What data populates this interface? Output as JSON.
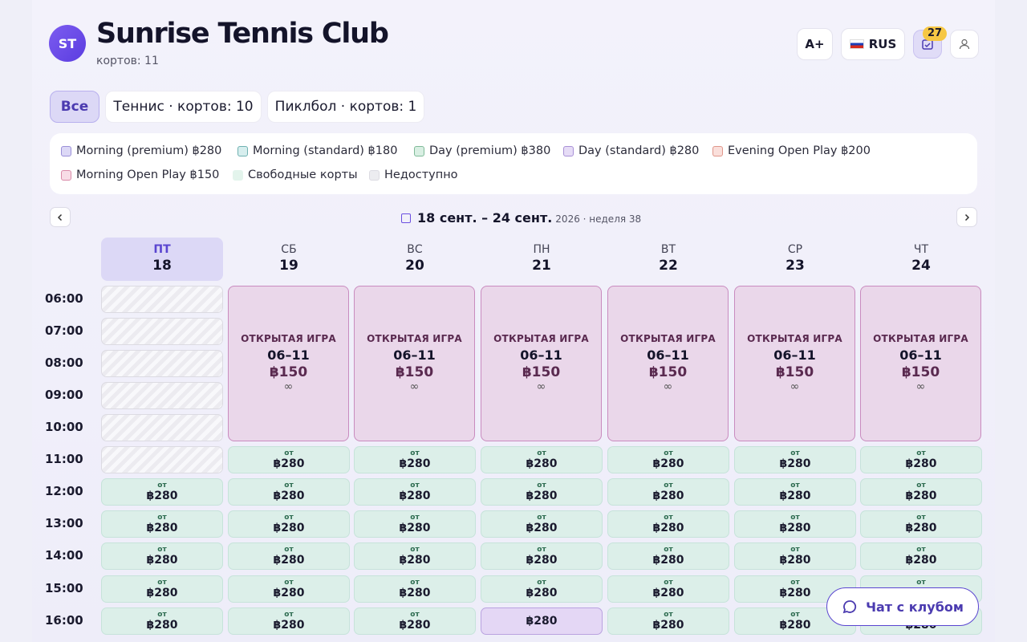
{
  "header": {
    "avatar_initials": "ST",
    "title": "Sunrise Tennis Club",
    "subtitle": "кортов: 11",
    "font_button": "A+",
    "lang_button": "RUS",
    "badge_count": "27"
  },
  "tabs": [
    {
      "label": "Все"
    },
    {
      "label": "Теннис · кортов: 10"
    },
    {
      "label": "Пиклбол · кортов: 1"
    }
  ],
  "legend": [
    {
      "label": "Morning (premium) ฿280",
      "color": "#dcd8f6",
      "border": "#9a8fd8"
    },
    {
      "label": "Morning (standard) ฿180",
      "color": "#d7eeee",
      "border": "#6fb1b1"
    },
    {
      "label": "Day (premium) ฿380",
      "color": "#d9efe3",
      "border": "#7fba98"
    },
    {
      "label": "Day (standard) ฿280",
      "color": "#e6dcf6",
      "border": "#a890d6"
    },
    {
      "label": "Evening Open Play ฿200",
      "color": "#fadfdb",
      "border": "#e0968a"
    },
    {
      "label": "Morning Open Play ฿150",
      "color": "#f8dce6",
      "border": "#d98aa8"
    },
    {
      "label": "Свободные корты",
      "color": "#e3f4ec",
      "border": "#e3f4ec"
    },
    {
      "label": "Недоступно",
      "color": "#ececf0",
      "border": "#dcdbe2"
    }
  ],
  "week": {
    "range": "18 сент. – 24 сент.",
    "meta": "2026 · неделя 38"
  },
  "days": [
    {
      "name": "ПТ",
      "num": "18"
    },
    {
      "name": "СБ",
      "num": "19"
    },
    {
      "name": "ВС",
      "num": "20"
    },
    {
      "name": "ПН",
      "num": "21"
    },
    {
      "name": "ВТ",
      "num": "22"
    },
    {
      "name": "СР",
      "num": "23"
    },
    {
      "name": "ЧТ",
      "num": "24"
    }
  ],
  "times": [
    "06:00",
    "07:00",
    "08:00",
    "09:00",
    "10:00",
    "11:00",
    "12:00",
    "13:00",
    "14:00",
    "15:00",
    "16:00"
  ],
  "open_play": {
    "title": "ОТКРЫТАЯ ИГРА",
    "time": "06–11",
    "price": "฿150",
    "capacity": "∞"
  },
  "slot": {
    "from": "от",
    "price": "฿280"
  },
  "chat_button": "Чат с клубом"
}
